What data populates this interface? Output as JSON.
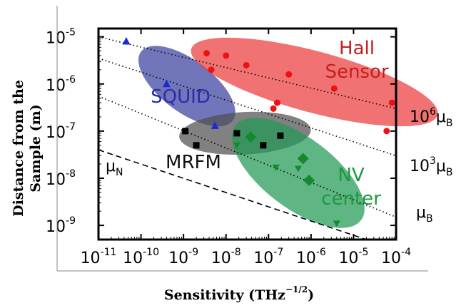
{
  "chart_data": {
    "type": "scatter",
    "xscale": "log",
    "yscale": "log",
    "xlim": [
      1e-11,
      0.0001
    ],
    "ylim": [
      5e-10,
      1.5e-05
    ],
    "x_ticks": [
      {
        "base": "10",
        "exp": "-11",
        "value": 1e-11
      },
      {
        "base": "10",
        "exp": "-10",
        "value": 1e-10
      },
      {
        "base": "10",
        "exp": "-9",
        "value": 1e-09
      },
      {
        "base": "10",
        "exp": "-8",
        "value": 1e-08
      },
      {
        "base": "10",
        "exp": "-7",
        "value": 1e-07
      },
      {
        "base": "10",
        "exp": "-6",
        "value": 1e-06
      },
      {
        "base": "10",
        "exp": "-5",
        "value": 1e-05
      },
      {
        "base": "10",
        "exp": "-4",
        "value": 0.0001
      }
    ],
    "y_ticks": [
      {
        "base": "10",
        "exp": "-9",
        "value": 1e-09
      },
      {
        "base": "10",
        "exp": "-8",
        "value": 1e-08
      },
      {
        "base": "10",
        "exp": "-7",
        "value": 1e-07
      },
      {
        "base": "10",
        "exp": "-6",
        "value": 1e-06
      },
      {
        "base": "10",
        "exp": "-5",
        "value": 1e-05
      }
    ],
    "xlabel": "Sensitivity (THz",
    "xlabel_exponent": "−1/2",
    "xlabel_close": ")",
    "ylabel_line1": "Distance from the",
    "ylabel_line2": "Sample (m)",
    "regions": [
      {
        "name": "SQUID",
        "label": "SQUID",
        "color": "#3a40a0",
        "cx": 1.2e-09,
        "cy": 9e-07,
        "rx_dec": 1.35,
        "ry_dec": 0.55,
        "angle": 37
      },
      {
        "name": "Hall Sensor",
        "label_line1": "Hall",
        "label_line2": "Sensor",
        "color": "#ea3b3b",
        "cx": 1.2e-06,
        "cy": 1.1e-06,
        "rx_dec": 3.0,
        "ry_dec": 0.65,
        "angle": 15
      },
      {
        "name": "MRFM",
        "label": "MRFM",
        "color": "#505050",
        "cx": 2.8e-08,
        "cy": 9e-08,
        "rx_dec": 1.55,
        "ry_dec": 0.45,
        "angle": -3
      },
      {
        "name": "NV center",
        "label_line1": "NV",
        "label_line2": "center",
        "color": "#229955",
        "cx": 5e-07,
        "cy": 1.3e-08,
        "rx_dec": 1.85,
        "ry_dec": 0.75,
        "angle": 37
      }
    ],
    "series": [
      {
        "name": "SQUID",
        "marker": "triangle",
        "color": "#1a2bd6",
        "points": [
          [
            4.5e-11,
            8e-06
          ],
          [
            4e-10,
            1e-06
          ],
          [
            5.5e-09,
            1.3e-07
          ]
        ]
      },
      {
        "name": "Hall Sensor",
        "marker": "circle",
        "color": "#ee1111",
        "points": [
          [
            3.5e-09,
            4.5e-06
          ],
          [
            4.5e-09,
            2e-06
          ],
          [
            1e-08,
            4e-06
          ],
          [
            3e-08,
            2.5e-06
          ],
          [
            1.3e-07,
            3e-07
          ],
          [
            1.6e-07,
            4e-07
          ],
          [
            3e-07,
            1.6e-06
          ],
          [
            3.5e-06,
            8e-07
          ],
          [
            6e-05,
            1e-07
          ],
          [
            8e-05,
            4e-07
          ]
        ]
      },
      {
        "name": "MRFM",
        "marker": "square",
        "color": "#000000",
        "points": [
          [
            1.1e-09,
            1e-07
          ],
          [
            2e-09,
            5e-08
          ],
          [
            1.8e-08,
            9e-08
          ],
          [
            7.5e-08,
            5e-08
          ],
          [
            1.9e-07,
            8e-08
          ]
        ]
      },
      {
        "name": "NV center",
        "marker": "diamond",
        "color": "#138a2e",
        "points": [
          [
            3.8e-08,
            7.5e-08
          ],
          [
            6.5e-07,
            2.6e-08
          ],
          [
            9e-07,
            9e-09
          ]
        ]
      },
      {
        "name": "NV center",
        "marker": "triangle-down",
        "color": "#138a2e",
        "points": [
          [
            1.8e-08,
            5e-08
          ],
          [
            1.5e-07,
            1.7e-08
          ],
          [
            5e-07,
            1.6e-08
          ],
          [
            4e-06,
            1.1e-09
          ]
        ]
      }
    ],
    "reference_lines": [
      {
        "label_base": "10",
        "label_exp": "6",
        "label_unit": "μ",
        "label_sub": "B",
        "style": "dotted",
        "x": [
          1e-11,
          0.0001
        ],
        "y": [
          1e-05,
          3e-07
        ]
      },
      {
        "label_base": "10",
        "label_exp": "3",
        "label_unit": "μ",
        "label_sub": "B",
        "style": "dotted",
        "x": [
          1e-11,
          0.0001
        ],
        "y": [
          3.5e-06,
          3e-08
        ]
      },
      {
        "label_base": "",
        "label_exp": "",
        "label_unit": "μ",
        "label_sub": "B",
        "style": "dotted",
        "x": [
          1e-11,
          0.0001
        ],
        "y": [
          5.5e-07,
          1.5e-09
        ]
      },
      {
        "label_base": "",
        "label_exp": "",
        "label_unit": "μ",
        "label_sub": "N",
        "style": "dashed",
        "x": [
          1e-11,
          2e-05
        ],
        "y": [
          4e-08,
          5e-10
        ]
      }
    ]
  }
}
